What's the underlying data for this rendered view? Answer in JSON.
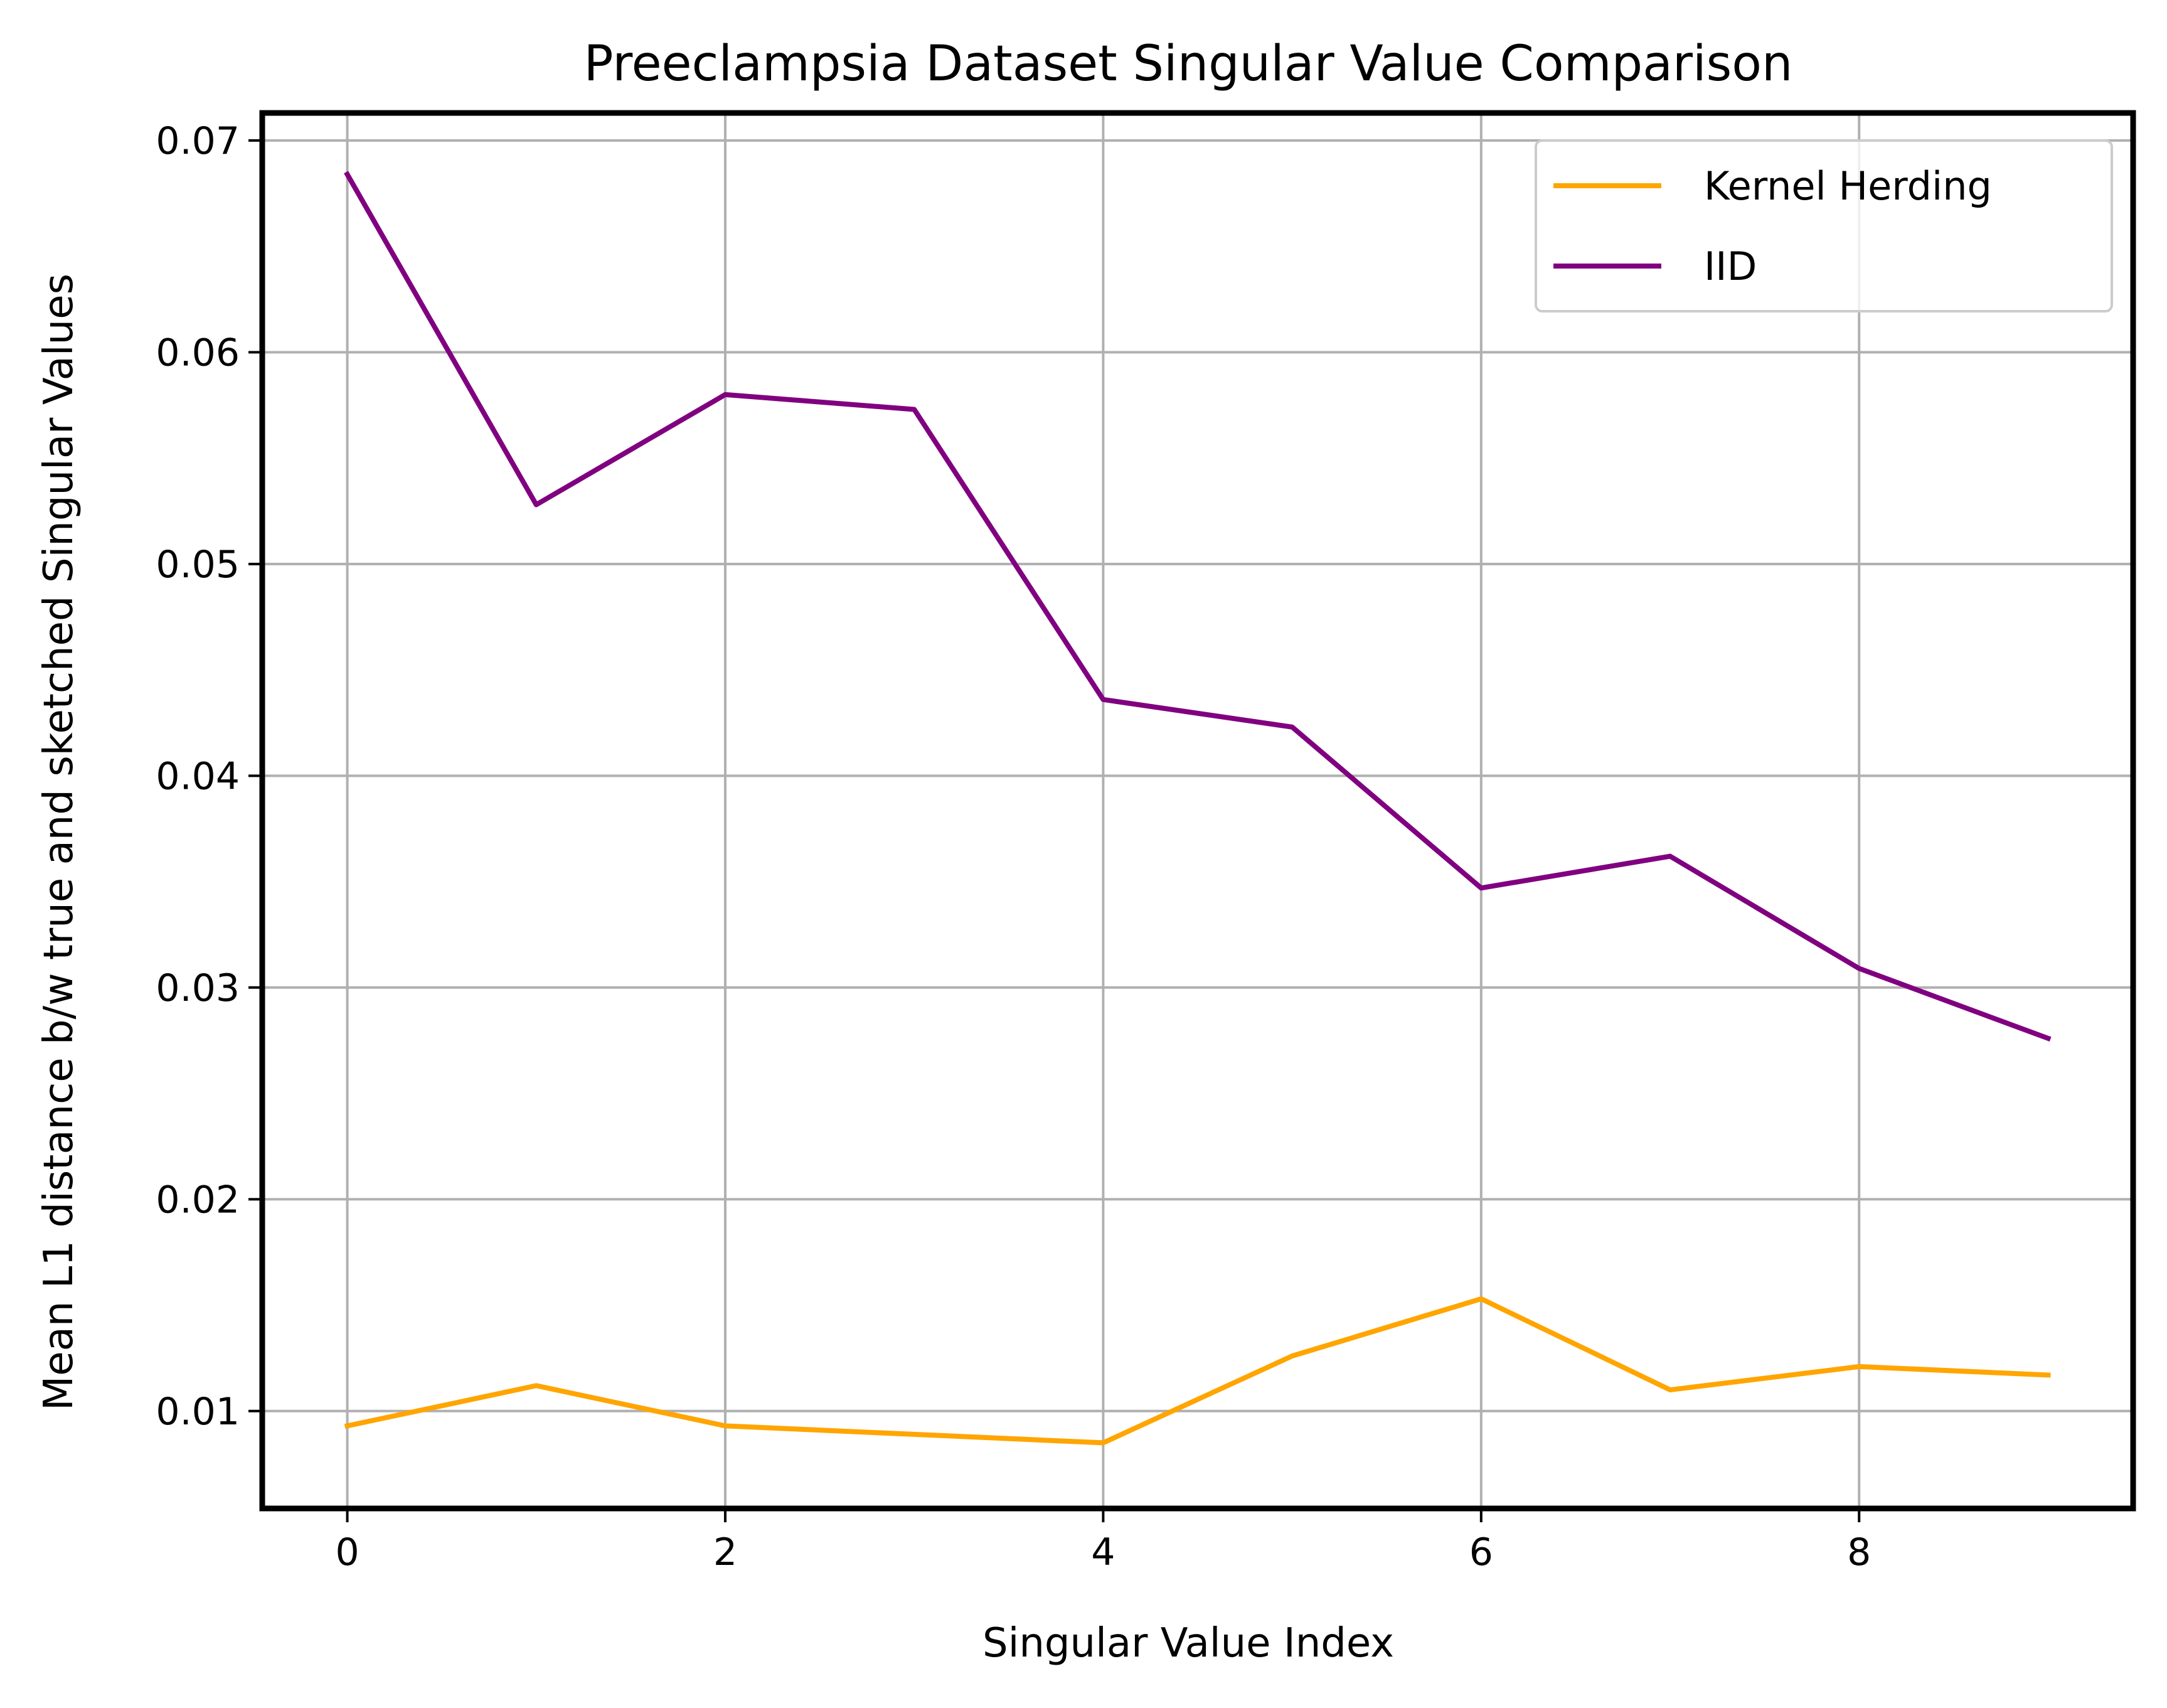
{
  "chart_data": {
    "type": "line",
    "title": "Preeclampsia Dataset Singular Value Comparison",
    "xlabel": "Singular Value Index",
    "ylabel": "Mean L1 distance b/w true and sketched Singular Values",
    "xlim": [
      -0.45,
      9.45
    ],
    "ylim": [
      0.0054,
      0.0713
    ],
    "xticks": [
      0,
      2,
      4,
      6,
      8
    ],
    "xtick_labels": [
      "0",
      "2",
      "4",
      "6",
      "8"
    ],
    "yticks": [
      0.01,
      0.02,
      0.03,
      0.04,
      0.05,
      0.06,
      0.07
    ],
    "ytick_labels": [
      "0.01",
      "0.02",
      "0.03",
      "0.04",
      "0.05",
      "0.06",
      "0.07"
    ],
    "grid": true,
    "legend_position": "top-right",
    "x": [
      0,
      1,
      2,
      3,
      4,
      5,
      6,
      7,
      8,
      9
    ],
    "series": [
      {
        "name": "Kernel Herding",
        "color": "#ffa500",
        "values": [
          0.0093,
          0.0112,
          0.0093,
          0.0089,
          0.0085,
          0.0126,
          0.0153,
          0.011,
          0.0121,
          0.0117
        ]
      },
      {
        "name": "IID",
        "color": "#800080",
        "values": [
          0.0684,
          0.0528,
          0.058,
          0.0573,
          0.0436,
          0.0423,
          0.0347,
          0.0362,
          0.0309,
          0.0276
        ]
      }
    ]
  }
}
